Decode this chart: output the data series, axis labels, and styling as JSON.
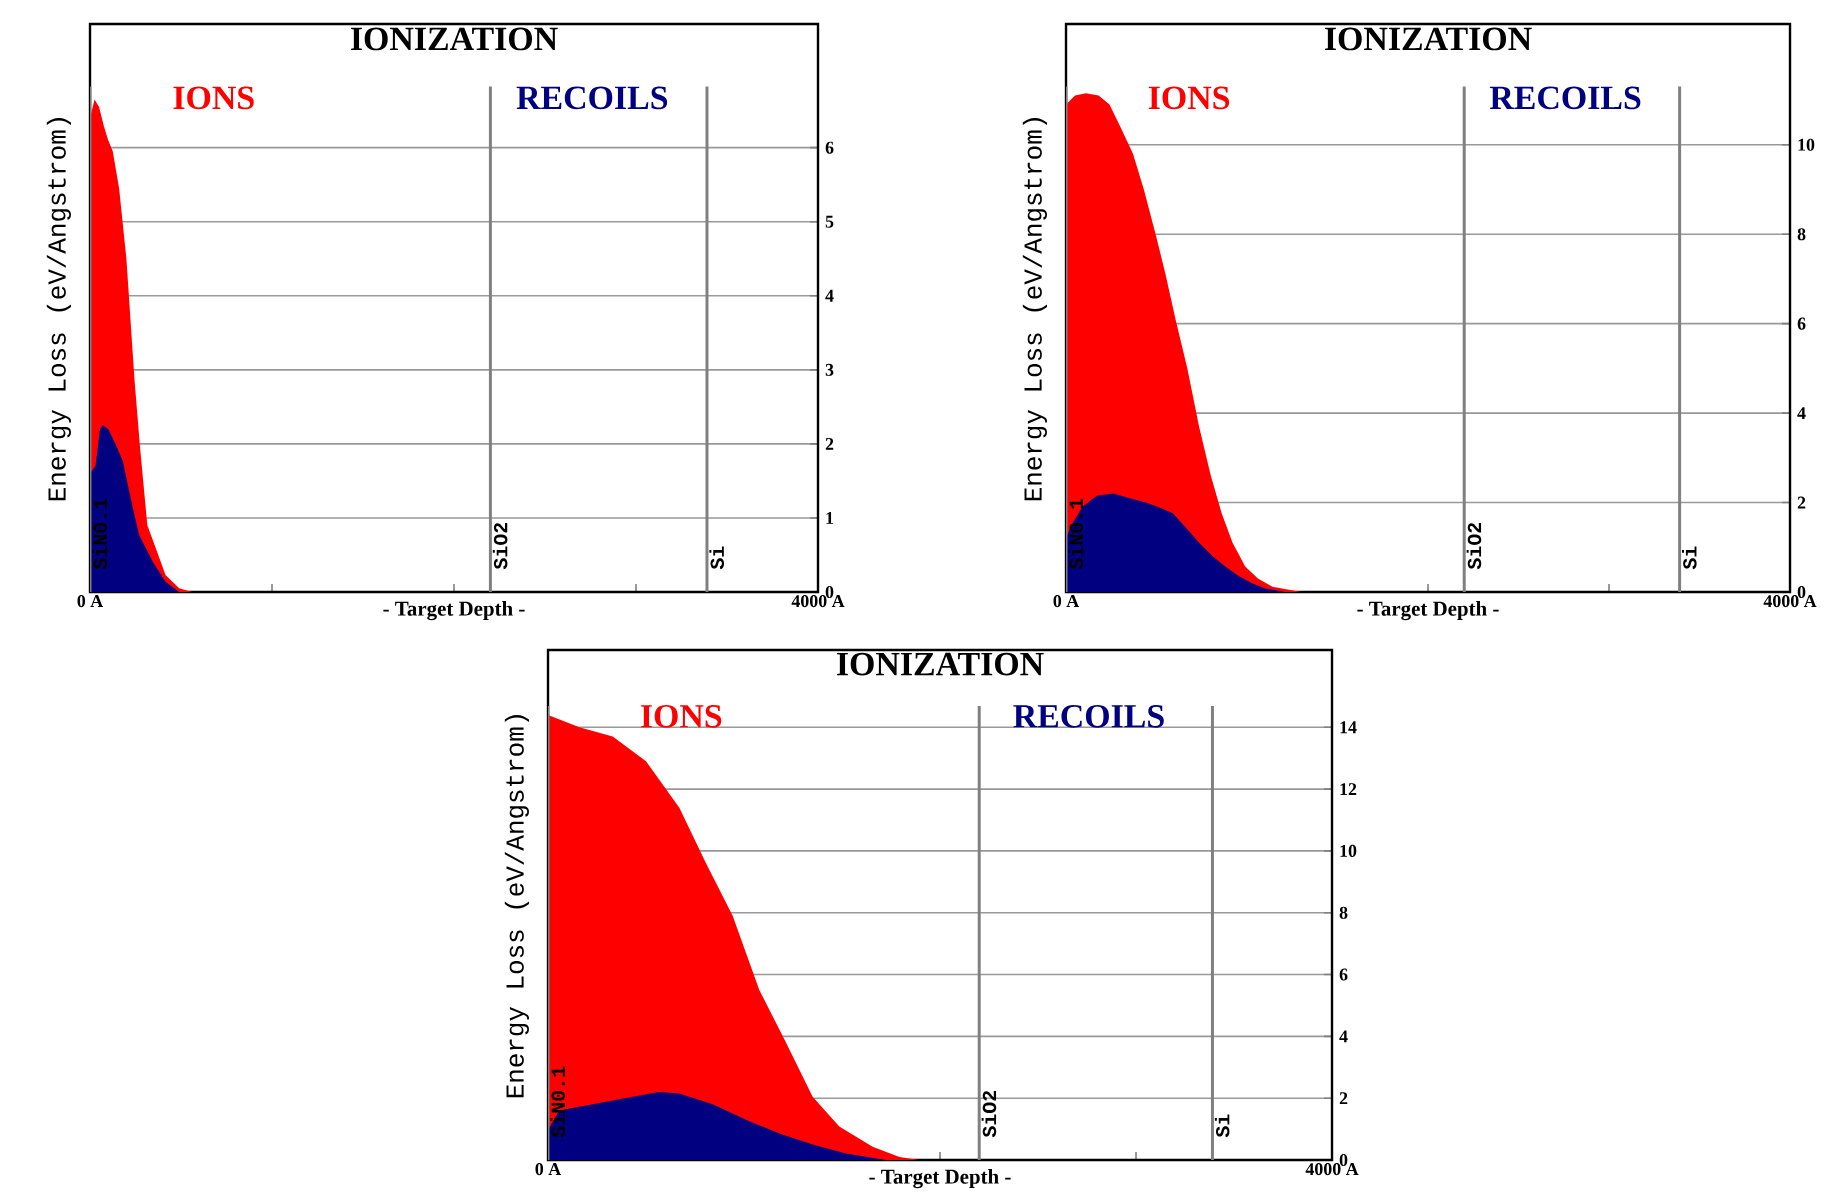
{
  "chart_data": [
    {
      "type": "area",
      "title": "IONIZATION",
      "xlabel": "- Target Depth -",
      "ylabel": "Energy Loss (eV/Angstrom)",
      "xlim": [
        0,
        4000
      ],
      "xticks": [
        {
          "value": 0,
          "label": "0 A"
        },
        {
          "value": 1000,
          "label": null
        },
        {
          "value": 2000,
          "label": null
        },
        {
          "value": 3000,
          "label": null
        },
        {
          "value": 4000,
          "label": "4000 A"
        }
      ],
      "ylim": [
        0,
        7.67
      ],
      "yticks": [
        0,
        1,
        2,
        3,
        4,
        5,
        6
      ],
      "grid": "y",
      "ref_lines": [
        {
          "axis": "x",
          "value": 0,
          "label": "SiN0.1",
          "color": "#808080"
        },
        {
          "axis": "x",
          "value": 2200,
          "label": "SiO2",
          "color": "#808080"
        },
        {
          "axis": "x",
          "value": 3390,
          "label": "Si",
          "color": "#808080"
        }
      ],
      "series": [
        {
          "name": "IONS",
          "color": "#ff0000",
          "x": [
            0,
            25,
            50,
            75,
            100,
            125,
            160,
            200,
            245,
            275,
            315,
            360,
            415,
            490,
            560
          ],
          "values": [
            6.4,
            6.65,
            6.55,
            6.3,
            6.1,
            5.95,
            5.45,
            4.5,
            2.85,
            1.95,
            0.9,
            0.6,
            0.23,
            0.05,
            0
          ]
        },
        {
          "name": "RECOILS",
          "color": "#000080",
          "x": [
            0,
            30,
            55,
            70,
            100,
            140,
            180,
            235,
            270,
            345,
            415,
            490
          ],
          "values": [
            1.6,
            1.7,
            2.2,
            2.25,
            2.2,
            2.0,
            1.77,
            1.14,
            0.77,
            0.41,
            0.14,
            0
          ]
        }
      ]
    },
    {
      "type": "area",
      "title": "IONIZATION",
      "xlabel": "- Target Depth -",
      "ylabel": "Energy Loss (eV/Angstrom)",
      "xlim": [
        0,
        4000
      ],
      "xticks": [
        {
          "value": 0,
          "label": "0 A"
        },
        {
          "value": 1000,
          "label": null
        },
        {
          "value": 2000,
          "label": null
        },
        {
          "value": 3000,
          "label": null
        },
        {
          "value": 4000,
          "label": "4000 A"
        }
      ],
      "ylim": [
        0,
        12.7
      ],
      "yticks": [
        0,
        2,
        4,
        6,
        8,
        10
      ],
      "grid": "y",
      "ref_lines": [
        {
          "axis": "x",
          "value": 0,
          "label": "SiN0.1",
          "color": "#808080"
        },
        {
          "axis": "x",
          "value": 2200,
          "label": "SiO2",
          "color": "#808080"
        },
        {
          "axis": "x",
          "value": 3390,
          "label": "Si",
          "color": "#808080"
        }
      ],
      "series": [
        {
          "name": "IONS",
          "color": "#ff0000",
          "x": [
            0,
            50,
            110,
            180,
            240,
            300,
            370,
            430,
            495,
            550,
            605,
            670,
            735,
            800,
            860,
            920,
            990,
            1060,
            1140,
            1300
          ],
          "values": [
            10.9,
            11.1,
            11.15,
            11.1,
            10.9,
            10.4,
            9.8,
            9.0,
            8.0,
            7.1,
            6.1,
            5.0,
            3.7,
            2.6,
            1.76,
            1.1,
            0.57,
            0.3,
            0.12,
            0
          ]
        },
        {
          "name": "RECOILS",
          "color": "#000080",
          "x": [
            0,
            30,
            90,
            170,
            260,
            350,
            440,
            510,
            590,
            660,
            735,
            810,
            880,
            950,
            1030,
            1100,
            1210
          ],
          "values": [
            1.2,
            1.5,
            1.9,
            2.15,
            2.2,
            2.1,
            2.0,
            1.9,
            1.76,
            1.45,
            1.1,
            0.8,
            0.57,
            0.37,
            0.19,
            0.08,
            0
          ]
        }
      ]
    },
    {
      "type": "area",
      "title": "IONIZATION",
      "xlabel": "- Target Depth -",
      "ylabel": "Energy Loss (eV/Angstrom)",
      "xlim": [
        0,
        4000
      ],
      "xticks": [
        {
          "value": 0,
          "label": "0 A"
        },
        {
          "value": 1000,
          "label": null
        },
        {
          "value": 2000,
          "label": null
        },
        {
          "value": 3000,
          "label": null
        },
        {
          "value": 4000,
          "label": "4000 A"
        }
      ],
      "ylim": [
        0,
        16.5
      ],
      "yticks": [
        0,
        2,
        4,
        6,
        8,
        10,
        12,
        14
      ],
      "grid": "y",
      "ref_lines": [
        {
          "axis": "x",
          "value": 0,
          "label": "SiN0.1",
          "color": "#808080"
        },
        {
          "axis": "x",
          "value": 2200,
          "label": "SiO2",
          "color": "#808080"
        },
        {
          "axis": "x",
          "value": 3390,
          "label": "Si",
          "color": "#808080"
        }
      ],
      "series": [
        {
          "name": "IONS",
          "color": "#ff0000",
          "x": [
            0,
            160,
            330,
            500,
            670,
            806,
            942,
            1078,
            1214,
            1350,
            1486,
            1656,
            1793,
            1894
          ],
          "values": [
            14.4,
            14.0,
            13.7,
            12.9,
            11.4,
            9.6,
            7.9,
            5.5,
            3.8,
            2.05,
            1.08,
            0.43,
            0.1,
            0
          ]
        },
        {
          "name": "RECOILS",
          "color": "#000080",
          "x": [
            0,
            58,
            228,
            432,
            568,
            670,
            840,
            1010,
            1180,
            1350,
            1520,
            1724
          ],
          "values": [
            0.97,
            1.6,
            1.8,
            2.05,
            2.2,
            2.15,
            1.8,
            1.3,
            0.86,
            0.5,
            0.21,
            0
          ]
        }
      ]
    }
  ]
}
